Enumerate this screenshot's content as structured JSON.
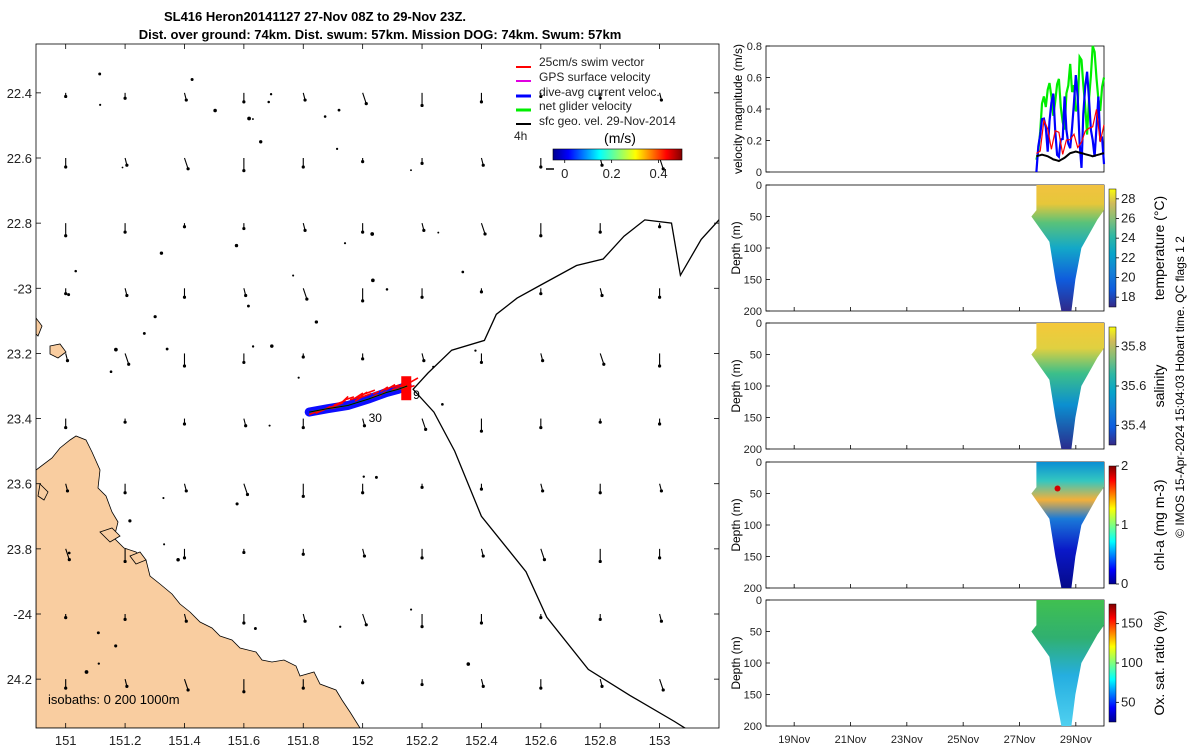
{
  "title": {
    "line1": "SL416 Heron20141127 27-Nov 08Z to 29-Nov 23Z.",
    "line2": "Dist. over ground: 74km. Dist. swum: 57km. Mission DOG: 74km. Swum: 57km"
  },
  "colors": {
    "land": "#f9cda0",
    "swim_vector": "#ff0000",
    "gps_velocity": "#e000e0",
    "dive_avg": "#0000ff",
    "net_glider": "#00ee00",
    "sfc_geo": "#000000"
  },
  "chart_data": [
    {
      "type": "map",
      "name": "trajectory-map",
      "xlim": [
        150.9,
        153.2
      ],
      "ylim": [
        -24.35,
        -22.25
      ],
      "x_ticks": [
        151,
        151.2,
        151.4,
        151.6,
        151.8,
        152,
        152.2,
        152.4,
        152.6,
        152.8,
        153
      ],
      "x_tick_labels": [
        "151",
        "151.2",
        "151.4",
        "151.6",
        "151.8",
        "152",
        "152.2",
        "152.4",
        "152.6",
        "152.8",
        "153"
      ],
      "y_ticks": [
        -22.4,
        -22.6,
        -22.8,
        -23,
        -23.2,
        -23.4,
        -23.6,
        -23.8,
        -24,
        -24.2
      ],
      "y_tick_labels": [
        "22.4",
        "22.6",
        "22.8",
        "-23",
        "23.2",
        "23.4",
        "23.6",
        "23.8",
        "-24",
        "24.2"
      ],
      "legend": {
        "placement": "top-right",
        "entries": [
          "25cm/s swim vector",
          "GPS surface velocity",
          "dive-avg current veloc.",
          "net glider velocity",
          "sfc geo. vel. 29-Nov-2014"
        ],
        "time_label": "4h"
      },
      "colorbar": {
        "label": "(m/s)",
        "ticks": [
          0,
          0.2,
          0.4
        ],
        "tick_labels": [
          "0",
          "0.2",
          "0.4"
        ],
        "range": [
          -0.05,
          0.5
        ]
      },
      "isobaths_label": "isobaths: 0   200  1000m",
      "track_labels": [
        "30",
        "9"
      ],
      "isobath_1000m": [
        [
          153.22,
          -22.77
        ],
        [
          153.14,
          -22.85
        ],
        [
          153.07,
          -22.96
        ],
        [
          153.04,
          -22.8
        ],
        [
          152.95,
          -22.79
        ],
        [
          152.88,
          -22.84
        ],
        [
          152.81,
          -22.91
        ],
        [
          152.72,
          -22.93
        ],
        [
          152.6,
          -22.99
        ],
        [
          152.52,
          -23.03
        ],
        [
          152.45,
          -23.08
        ],
        [
          152.41,
          -23.16
        ],
        [
          152.3,
          -23.19
        ],
        [
          152.22,
          -23.26
        ],
        [
          152.17,
          -23.31
        ],
        [
          152.24,
          -23.38
        ],
        [
          152.31,
          -23.5
        ],
        [
          152.4,
          -23.7
        ],
        [
          152.55,
          -23.87
        ],
        [
          152.62,
          -24.01
        ],
        [
          152.76,
          -24.17
        ],
        [
          152.9,
          -24.25
        ],
        [
          153.05,
          -24.33
        ],
        [
          153.12,
          -24.37
        ]
      ],
      "glider_track": [
        [
          151.82,
          -23.38
        ],
        [
          151.88,
          -23.37
        ],
        [
          151.95,
          -23.36
        ],
        [
          152.02,
          -23.34
        ],
        [
          152.08,
          -23.32
        ],
        [
          152.12,
          -23.31
        ],
        [
          152.15,
          -23.3
        ]
      ],
      "current_field": {
        "lons": [
          151,
          151.2,
          151.4,
          151.6,
          151.8,
          152,
          152.2,
          152.4,
          152.6,
          152.8,
          153
        ],
        "lats": [
          -22.4,
          -22.6,
          -22.8,
          -23,
          -23.2,
          -23.4,
          -23.6,
          -23.8,
          -24,
          -24.2
        ],
        "u_ms": [
          0.0,
          0.0,
          0.01,
          0.0,
          0.01,
          0.02,
          0.0,
          0.0
        ],
        "v_ms": [
          -0.02,
          -0.03,
          -0.04,
          -0.05,
          -0.04,
          -0.06,
          -0.07,
          -0.05
        ],
        "note": "repeating pattern of southward surface currents"
      }
    },
    {
      "type": "line",
      "name": "velocity-panel",
      "ylabel": "velocity magnitude (m/s)",
      "ylim": [
        0,
        0.8
      ],
      "y_ticks": [
        0,
        0.2,
        0.4,
        0.6,
        0.8
      ],
      "y_tick_labels": [
        "0",
        "0.2",
        "0.4",
        "0.6",
        "0.8"
      ],
      "xlim_days": [
        0,
        12
      ],
      "series": [
        {
          "name": "net glider velocity",
          "color": "#00ee00",
          "x": [
            9.6,
            9.8,
            10.0,
            10.2,
            10.4,
            10.6,
            10.8,
            11.0,
            11.2,
            11.4,
            11.6,
            11.8,
            12.0
          ],
          "values": [
            0.05,
            0.42,
            0.55,
            0.35,
            0.62,
            0.3,
            0.58,
            0.4,
            0.75,
            0.35,
            0.8,
            0.45,
            0.6
          ]
        },
        {
          "name": "dive-avg current veloc.",
          "color": "#0000ff",
          "x": [
            9.6,
            9.8,
            10.0,
            10.2,
            10.4,
            10.6,
            10.8,
            11.0,
            11.2,
            11.4,
            11.6,
            11.8,
            12.0
          ],
          "values": [
            0.05,
            0.4,
            0.2,
            0.5,
            0.1,
            0.45,
            0.2,
            0.5,
            0.15,
            0.55,
            0.1,
            0.45,
            0.05
          ]
        },
        {
          "name": "swim",
          "color": "#ff0000",
          "x": [
            9.6,
            10.0,
            10.4,
            10.8,
            11.2,
            11.6,
            12.0
          ],
          "values": [
            0.15,
            0.25,
            0.2,
            0.3,
            0.25,
            0.28,
            0.3
          ]
        },
        {
          "name": "sfc geo. vel. 29-Nov-2014",
          "color": "#000000",
          "x": [
            9.6,
            9.8,
            10.0,
            10.2,
            10.4,
            10.6,
            10.8,
            11.0,
            11.2,
            11.4,
            11.6,
            11.8,
            12.0
          ],
          "values": [
            0.1,
            0.11,
            0.1,
            0.08,
            0.07,
            0.09,
            0.12,
            0.13,
            0.12,
            0.11,
            0.1,
            0.11,
            0.12
          ]
        }
      ]
    },
    {
      "type": "heatmap",
      "name": "temperature-panel",
      "ylabel": "Depth (m)",
      "ylim": [
        200,
        0
      ],
      "y_ticks": [
        0,
        50,
        100,
        150,
        200
      ],
      "y_tick_labels": [
        "0",
        "50",
        "100",
        "150",
        "200"
      ],
      "colorbar": {
        "label": "temperature (°C)",
        "range": [
          17,
          29
        ],
        "ticks": [
          18,
          20,
          22,
          24,
          26,
          28
        ],
        "tick_labels": [
          "18",
          "20",
          "22",
          "24",
          "26",
          "28"
        ]
      }
    },
    {
      "type": "heatmap",
      "name": "salinity-panel",
      "ylabel": "Depth (m)",
      "ylim": [
        200,
        0
      ],
      "y_ticks": [
        0,
        50,
        100,
        150,
        200
      ],
      "y_tick_labels": [
        "0",
        "50",
        "100",
        "150",
        "200"
      ],
      "colorbar": {
        "label": "salinity",
        "range": [
          35.3,
          35.9
        ],
        "ticks": [
          35.4,
          35.6,
          35.8
        ],
        "tick_labels": [
          "35.4",
          "35.6",
          "35.8"
        ]
      }
    },
    {
      "type": "heatmap",
      "name": "chla-panel",
      "ylabel": "Depth (m)",
      "ylim": [
        200,
        0
      ],
      "y_ticks": [
        0,
        50,
        100,
        150,
        200
      ],
      "y_tick_labels": [
        "0",
        "50",
        "100",
        "150",
        "200"
      ],
      "colorbar": {
        "label": "chl-a (mg m-3)",
        "range": [
          0,
          2
        ],
        "ticks": [
          0,
          1,
          2
        ],
        "tick_labels": [
          "0",
          "1",
          "2"
        ]
      }
    },
    {
      "type": "heatmap",
      "name": "oxygen-panel",
      "ylabel": "Depth (m)",
      "ylim": [
        200,
        0
      ],
      "y_ticks": [
        0,
        50,
        100,
        150,
        200
      ],
      "y_tick_labels": [
        "0",
        "50",
        "100",
        "150",
        "200"
      ],
      "colorbar": {
        "label": "Ox. sat. ratio (%)",
        "range": [
          25,
          175
        ],
        "ticks": [
          50,
          100,
          150
        ],
        "tick_labels": [
          "50",
          "100",
          "150"
        ]
      },
      "x_tick_labels": [
        "19Nov",
        "21Nov",
        "23Nov",
        "25Nov",
        "27Nov",
        "29Nov"
      ]
    }
  ],
  "footer": {
    "credit": "© IMOS 15-Apr-2024 15:04:03 Hobart time. QC flags 1  2"
  }
}
